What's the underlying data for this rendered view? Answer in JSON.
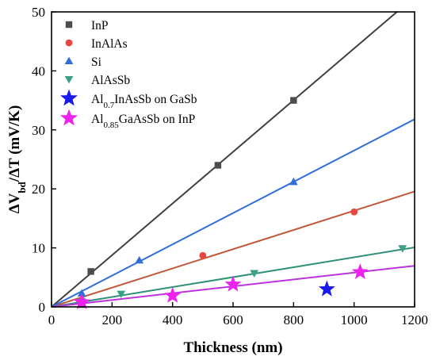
{
  "chart_data": {
    "type": "scatter",
    "title": "",
    "xlabel": "Thickness (nm)",
    "ylabel": {
      "main": "ΔV",
      "sub": "bd",
      "rest": "/ΔT (mV/K)"
    },
    "xlim": [
      0,
      1200
    ],
    "ylim": [
      0,
      50
    ],
    "xticks": [
      0,
      200,
      400,
      600,
      800,
      1000,
      1200
    ],
    "yticks": [
      0,
      10,
      20,
      30,
      40,
      50
    ],
    "grid": false,
    "legend_position": "top-left",
    "series": [
      {
        "name": "InP",
        "label_parts": [
          "InP"
        ],
        "marker": "square",
        "color": "#4d4d4d",
        "line_color": "#404040",
        "fit_slope": 0.0438,
        "points": [
          [
            100,
            0.4
          ],
          [
            130,
            6.0
          ],
          [
            550,
            24.0
          ],
          [
            800,
            35.0
          ]
        ]
      },
      {
        "name": "InAlAs",
        "label_parts": [
          "InAlAs"
        ],
        "marker": "circle",
        "color": "#e8463f",
        "line_color": "#c0583b",
        "fit_slope": 0.0163,
        "points": [
          [
            100,
            1.1
          ],
          [
            500,
            8.7
          ],
          [
            1000,
            16.1
          ]
        ]
      },
      {
        "name": "Si",
        "label_parts": [
          "Si"
        ],
        "marker": "triangle-up",
        "color": "#2f6fd6",
        "line_color": "#2f6fd6",
        "fit_slope": 0.0265,
        "points": [
          [
            100,
            2.3
          ],
          [
            290,
            7.9
          ],
          [
            800,
            21.2
          ]
        ]
      },
      {
        "name": "AlAsSb",
        "label_parts": [
          "AlAsSb"
        ],
        "marker": "triangle-down",
        "color": "#3aa088",
        "line_color": "#2f8f78",
        "fit_slope": 0.0084,
        "points": [
          [
            100,
            0.9
          ],
          [
            230,
            2.2
          ],
          [
            670,
            5.7
          ],
          [
            1160,
            9.9
          ]
        ]
      },
      {
        "name": "Al0.7InAsSb on GaSb",
        "label_parts": [
          "Al",
          "0.7",
          "InAsSb on GaSb"
        ],
        "marker": "star-large",
        "color": "#1a1aee",
        "line_color": null,
        "fit_slope": null,
        "points": [
          [
            910,
            3.0
          ]
        ]
      },
      {
        "name": "Al0.85GaAsSb on InP",
        "label_parts": [
          "Al",
          "0.85",
          "GaAsSb on InP"
        ],
        "marker": "star-large",
        "color": "#ee22ee",
        "line_color": "#bb33dd",
        "fit_slope": 0.0058,
        "points": [
          [
            100,
            0.8
          ],
          [
            400,
            1.9
          ],
          [
            600,
            3.8
          ],
          [
            1020,
            5.9
          ]
        ]
      }
    ]
  }
}
